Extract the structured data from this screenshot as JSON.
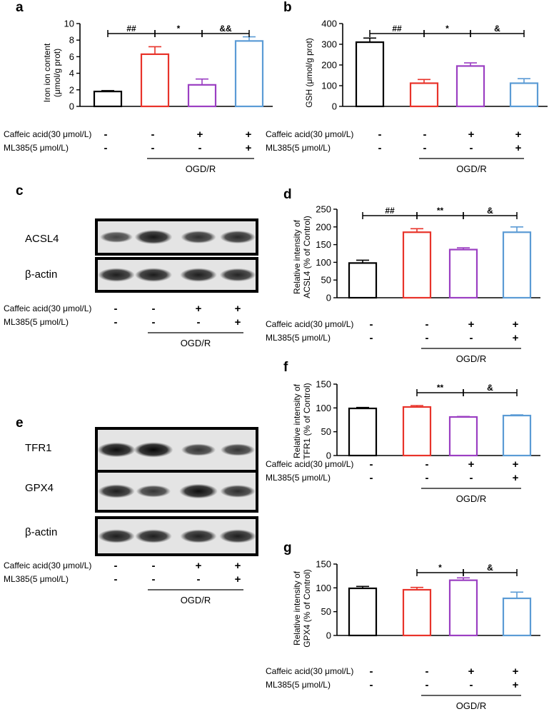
{
  "treatment_labels": {
    "caffeic": "Caffeic acid(30 μmol/L)",
    "ml385": "ML385(5 μmol/L)",
    "caffeic_signs": [
      "-",
      "-",
      "+",
      "+"
    ],
    "ml385_signs": [
      "-",
      "-",
      "-",
      "+"
    ],
    "group": "OGD/R"
  },
  "colors": {
    "control": "#000000",
    "ogdr": "#e8332a",
    "caffeic": "#9b3fc2",
    "ml385": "#5b9bd5"
  },
  "panels": {
    "a": {
      "letter": "a",
      "ylabel_1": "Iron ion content",
      "ylabel_2": "(μmol/g prot)"
    },
    "b": {
      "letter": "b",
      "ylabel_1": "GSH (μmol/g prot)"
    },
    "c": {
      "letter": "c",
      "bands": [
        "ACSL4",
        "β-actin"
      ]
    },
    "d": {
      "letter": "d",
      "ylabel_1": "Relative intensity of",
      "ylabel_2": "ACSL4 (% of Control)"
    },
    "e": {
      "letter": "e",
      "bands": [
        "TFR1",
        "GPX4",
        "β-actin"
      ]
    },
    "f": {
      "letter": "f",
      "ylabel_1": "Relative intensity of",
      "ylabel_2": "TFR1 (% of Control)"
    },
    "g": {
      "letter": "g",
      "ylabel_1": "Relative intensity of",
      "ylabel_2": "GPX4 (% of Control)"
    }
  },
  "chart_data": [
    {
      "panel": "a",
      "type": "bar",
      "categories": [
        "1",
        "2",
        "3",
        "4"
      ],
      "values": [
        1.8,
        6.3,
        2.6,
        7.9
      ],
      "errors": [
        0.1,
        0.9,
        0.7,
        0.5
      ],
      "ylim": [
        0,
        10
      ],
      "yticks": [
        0,
        2,
        4,
        6,
        8,
        10
      ],
      "significance": [
        {
          "from": 0,
          "to": 1,
          "label": "##"
        },
        {
          "from": 1,
          "to": 2,
          "label": "*"
        },
        {
          "from": 2,
          "to": 3,
          "label": "&&"
        }
      ]
    },
    {
      "panel": "b",
      "type": "bar",
      "categories": [
        "1",
        "2",
        "3",
        "4"
      ],
      "values": [
        310,
        112,
        195,
        112
      ],
      "errors": [
        20,
        18,
        15,
        22
      ],
      "ylim": [
        0,
        400
      ],
      "yticks": [
        0,
        100,
        200,
        300,
        400
      ],
      "significance": [
        {
          "from": 0,
          "to": 1,
          "label": "##"
        },
        {
          "from": 1,
          "to": 2,
          "label": "*"
        },
        {
          "from": 2,
          "to": 3,
          "label": "&"
        }
      ]
    },
    {
      "panel": "d",
      "type": "bar",
      "categories": [
        "1",
        "2",
        "3",
        "4"
      ],
      "values": [
        98,
        185,
        136,
        185
      ],
      "errors": [
        8,
        10,
        5,
        15
      ],
      "ylim": [
        0,
        250
      ],
      "yticks": [
        0,
        50,
        100,
        150,
        200,
        250
      ],
      "significance": [
        {
          "from": 0,
          "to": 1,
          "label": "##"
        },
        {
          "from": 1,
          "to": 2,
          "label": "**"
        },
        {
          "from": 2,
          "to": 3,
          "label": "&"
        }
      ]
    },
    {
      "panel": "f",
      "type": "bar",
      "categories": [
        "1",
        "2",
        "3",
        "4"
      ],
      "values": [
        99,
        102,
        81,
        84
      ],
      "errors": [
        2,
        3,
        1,
        1.5
      ],
      "ylim": [
        0,
        150
      ],
      "yticks": [
        0,
        50,
        100,
        150
      ],
      "significance": [
        {
          "from": 1,
          "to": 2,
          "label": "**"
        },
        {
          "from": 2,
          "to": 3,
          "label": "&"
        }
      ]
    },
    {
      "panel": "g",
      "type": "bar",
      "categories": [
        "1",
        "2",
        "3",
        "4"
      ],
      "values": [
        99,
        96,
        116,
        78
      ],
      "errors": [
        4,
        5,
        5,
        13
      ],
      "ylim": [
        0,
        150
      ],
      "yticks": [
        0,
        50,
        100,
        150
      ],
      "significance": [
        {
          "from": 1,
          "to": 2,
          "label": "*"
        },
        {
          "from": 2,
          "to": 3,
          "label": "&"
        }
      ]
    }
  ],
  "blots": {
    "c": [
      {
        "band": "ACSL4",
        "intensity": [
          0.55,
          0.85,
          0.7,
          0.72
        ]
      },
      {
        "band": "β-actin",
        "intensity": [
          0.8,
          0.82,
          0.8,
          0.75
        ]
      }
    ],
    "e": [
      {
        "band": "TFR1",
        "intensity": [
          0.9,
          0.95,
          0.65,
          0.65
        ]
      },
      {
        "band": "GPX4",
        "intensity": [
          0.8,
          0.65,
          0.9,
          0.7
        ]
      },
      {
        "band": "β-actin",
        "intensity": [
          0.8,
          0.8,
          0.78,
          0.8
        ]
      }
    ]
  }
}
